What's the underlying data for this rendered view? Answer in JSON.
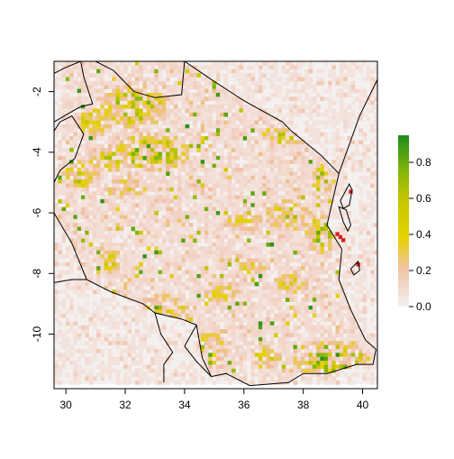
{
  "chart_data": {
    "type": "heatmap",
    "title": "",
    "xlabel": "",
    "ylabel": "",
    "xlim": [
      29.6,
      40.5
    ],
    "ylim": [
      -11.8,
      -1.0
    ],
    "x_ticks": [
      30,
      32,
      34,
      36,
      38,
      40
    ],
    "y_ticks": [
      -2,
      -4,
      -6,
      -8,
      -10
    ],
    "x_tick_labels": [
      "30",
      "32",
      "34",
      "36",
      "38",
      "40"
    ],
    "y_tick_labels": [
      "-2",
      "-4",
      "-6",
      "-8",
      "-10"
    ],
    "legend": {
      "position": "right",
      "range": [
        0,
        0.95
      ],
      "ticks": [
        0.0,
        0.2,
        0.4,
        0.6,
        0.8
      ],
      "tick_labels": [
        "0.0",
        "0.2",
        "0.4",
        "0.6",
        "0.8"
      ],
      "colors": [
        "#f2f2f2",
        "#f1c4a6",
        "#e6d200",
        "#c6c600",
        "#7fb40a",
        "#1e8c1e"
      ]
    },
    "background_value": 0.03,
    "map_extent": {
      "xmin": 29.6,
      "xmax": 40.5,
      "ymin": -11.65,
      "ymax": -1.0
    },
    "country_outline": [
      [
        30.0,
        -1.0
      ],
      [
        31.0,
        -1.0
      ],
      [
        34.0,
        -1.0
      ],
      [
        34.9,
        -1.6
      ],
      [
        36.0,
        -2.3
      ],
      [
        37.3,
        -3.0
      ],
      [
        37.6,
        -3.3
      ],
      [
        38.6,
        -4.1
      ],
      [
        39.2,
        -4.7
      ],
      [
        38.8,
        -6.4
      ],
      [
        39.3,
        -7.2
      ],
      [
        39.2,
        -8.2
      ],
      [
        39.6,
        -9.2
      ],
      [
        40.1,
        -10.2
      ],
      [
        40.45,
        -10.5
      ],
      [
        40.35,
        -11.0
      ],
      [
        39.8,
        -11.0
      ],
      [
        38.8,
        -11.3
      ],
      [
        38.0,
        -11.3
      ],
      [
        37.5,
        -11.6
      ],
      [
        36.2,
        -11.7
      ],
      [
        35.4,
        -11.3
      ],
      [
        34.9,
        -11.4
      ],
      [
        34.6,
        -10.8
      ],
      [
        34.4,
        -9.7
      ],
      [
        33.9,
        -9.5
      ],
      [
        33.0,
        -9.3
      ],
      [
        32.6,
        -9.0
      ],
      [
        31.5,
        -8.6
      ],
      [
        30.7,
        -8.2
      ],
      [
        30.2,
        -7.0
      ],
      [
        29.6,
        -6.0
      ]
    ],
    "neighbor_borders": [
      [
        [
          29.6,
          -1.4
        ],
        [
          30.0,
          -1.2
        ],
        [
          30.5,
          -1.0
        ],
        [
          30.6,
          -1.5
        ],
        [
          30.9,
          -2.4
        ],
        [
          30.5,
          -2.5
        ],
        [
          30.3,
          -2.6
        ],
        [
          29.6,
          -3.0
        ]
      ],
      [
        [
          29.6,
          -3.3
        ],
        [
          29.8,
          -3.0
        ],
        [
          30.2,
          -2.8
        ],
        [
          30.6,
          -3.4
        ],
        [
          30.3,
          -4.2
        ],
        [
          29.8,
          -4.6
        ],
        [
          29.6,
          -5.0
        ]
      ],
      [
        [
          29.6,
          -8.3
        ],
        [
          30.2,
          -8.2
        ],
        [
          30.7,
          -8.2
        ]
      ],
      [
        [
          33.0,
          -9.3
        ],
        [
          33.2,
          -10.0
        ],
        [
          33.6,
          -10.6
        ],
        [
          33.3,
          -11.0
        ],
        [
          33.3,
          -11.6
        ]
      ],
      [
        [
          34.4,
          -9.7
        ],
        [
          34.0,
          -10.4
        ],
        [
          34.4,
          -10.9
        ],
        [
          34.9,
          -11.4
        ]
      ],
      [
        [
          40.5,
          -1.6
        ],
        [
          39.9,
          -2.8
        ],
        [
          39.2,
          -4.7
        ]
      ]
    ],
    "islands": [
      [
        [
          39.25,
          -5.6
        ],
        [
          39.55,
          -5.05
        ],
        [
          39.65,
          -5.25
        ],
        [
          39.55,
          -5.75
        ],
        [
          39.35,
          -5.85
        ]
      ],
      [
        [
          39.2,
          -5.8
        ],
        [
          39.35,
          -6.3
        ],
        [
          39.5,
          -6.6
        ],
        [
          39.6,
          -6.4
        ],
        [
          39.45,
          -5.9
        ]
      ],
      [
        [
          39.6,
          -7.85
        ],
        [
          39.85,
          -7.6
        ],
        [
          39.9,
          -7.9
        ],
        [
          39.7,
          -8.05
        ]
      ]
    ],
    "lakes": [
      [
        [
          31.0,
          -1.0
        ],
        [
          31.6,
          -1.3
        ],
        [
          32.3,
          -2.0
        ],
        [
          33.0,
          -2.2
        ],
        [
          33.9,
          -2.1
        ],
        [
          34.0,
          -1.0
        ]
      ]
    ],
    "hotspots": [
      {
        "x": 32.3,
        "y": -2.5,
        "rx": 1.2,
        "ry": 0.7,
        "value": 0.75
      },
      {
        "x": 31.0,
        "y": -3.0,
        "rx": 0.6,
        "ry": 0.5,
        "value": 0.7
      },
      {
        "x": 32.9,
        "y": -4.0,
        "rx": 1.3,
        "ry": 0.6,
        "value": 0.85
      },
      {
        "x": 31.5,
        "y": -4.2,
        "rx": 0.8,
        "ry": 0.4,
        "value": 0.6
      },
      {
        "x": 30.5,
        "y": -4.8,
        "rx": 0.6,
        "ry": 0.5,
        "value": 0.65
      },
      {
        "x": 32.0,
        "y": -5.2,
        "rx": 0.8,
        "ry": 0.3,
        "value": 0.55
      },
      {
        "x": 37.4,
        "y": -3.5,
        "rx": 0.6,
        "ry": 0.3,
        "value": 0.7
      },
      {
        "x": 38.6,
        "y": -5.0,
        "rx": 0.3,
        "ry": 0.6,
        "value": 0.75
      },
      {
        "x": 37.5,
        "y": -6.1,
        "rx": 0.8,
        "ry": 0.5,
        "value": 0.6
      },
      {
        "x": 38.6,
        "y": -6.7,
        "rx": 0.5,
        "ry": 0.7,
        "value": 0.75
      },
      {
        "x": 36.0,
        "y": -6.3,
        "rx": 0.7,
        "ry": 0.3,
        "value": 0.5
      },
      {
        "x": 31.5,
        "y": -7.6,
        "rx": 0.4,
        "ry": 0.4,
        "value": 0.6
      },
      {
        "x": 33.3,
        "y": -9.1,
        "rx": 0.8,
        "ry": 0.4,
        "value": 0.8
      },
      {
        "x": 35.2,
        "y": -8.6,
        "rx": 0.6,
        "ry": 0.4,
        "value": 0.55
      },
      {
        "x": 36.2,
        "y": -7.8,
        "rx": 0.5,
        "ry": 0.3,
        "value": 0.5
      },
      {
        "x": 37.6,
        "y": -8.3,
        "rx": 0.6,
        "ry": 0.4,
        "value": 0.55
      },
      {
        "x": 34.8,
        "y": -10.6,
        "rx": 0.6,
        "ry": 0.7,
        "value": 0.8
      },
      {
        "x": 38.9,
        "y": -10.8,
        "rx": 1.3,
        "ry": 0.6,
        "value": 0.9
      },
      {
        "x": 36.7,
        "y": -10.8,
        "rx": 0.6,
        "ry": 0.4,
        "value": 0.6
      }
    ],
    "red_cells": [
      {
        "x": 39.25,
        "y": -6.8,
        "value": 0.95
      },
      {
        "x": 39.35,
        "y": -6.9,
        "value": 0.95
      },
      {
        "x": 39.15,
        "y": -6.7,
        "value": 0.95
      },
      {
        "x": 39.6,
        "y": -5.3,
        "value": 0.95
      },
      {
        "x": 39.85,
        "y": -7.7,
        "value": 0.95
      }
    ]
  }
}
